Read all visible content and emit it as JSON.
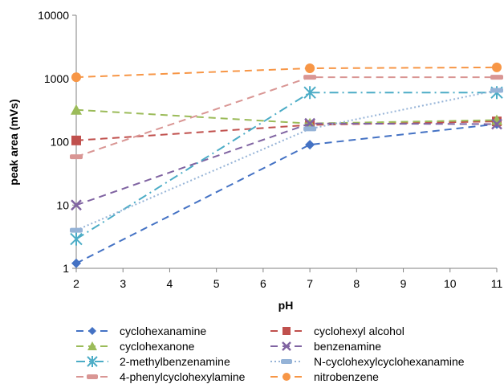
{
  "chart_data": {
    "type": "line",
    "title": "",
    "xlabel": "pH",
    "ylabel": "peak area (mVs)",
    "x_ticks": [
      "2",
      "3",
      "4",
      "5",
      "6",
      "7",
      "8",
      "9",
      "10",
      "11"
    ],
    "y_ticks": [
      "1",
      "10",
      "100",
      "1000",
      "10000"
    ],
    "xlim": [
      2,
      11
    ],
    "ylim": [
      1,
      10000
    ],
    "y_scale": "log",
    "grid": false,
    "legend_position": "bottom",
    "x": [
      2,
      7,
      11
    ],
    "series": [
      {
        "name": "cyclohexanamine",
        "values": [
          1.2,
          90,
          190
        ],
        "color": "#4472c4",
        "marker": "diamond",
        "dash": "dash"
      },
      {
        "name": "cyclohexyl alcohol",
        "values": [
          105,
          185,
          210
        ],
        "color": "#c0504d",
        "marker": "square",
        "dash": "dash"
      },
      {
        "name": "cyclohexanone",
        "values": [
          320,
          195,
          220
        ],
        "color": "#9bbb59",
        "marker": "triangle",
        "dash": "dash"
      },
      {
        "name": "benzenamine",
        "values": [
          10,
          195,
          190
        ],
        "color": "#8064a2",
        "marker": "x",
        "dash": "dash"
      },
      {
        "name": "2-methylbenzenamine",
        "values": [
          2.9,
          600,
          600
        ],
        "color": "#4bacc6",
        "marker": "star",
        "dash": "dashdot"
      },
      {
        "name": "N-cyclohexylcyclohexanamine",
        "values": [
          4,
          160,
          650
        ],
        "color": "#95b3d7",
        "marker": "rect",
        "dash": "dot"
      },
      {
        "name": "4-phenylcyclohexylamine",
        "values": [
          58,
          1050,
          1050
        ],
        "color": "#d99694",
        "marker": "rect",
        "dash": "dash"
      },
      {
        "name": "nitrobenzene",
        "values": [
          1050,
          1450,
          1500
        ],
        "color": "#f79646",
        "marker": "circle",
        "dash": "dash"
      }
    ]
  }
}
